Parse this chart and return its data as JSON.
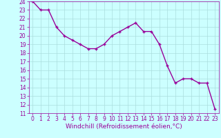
{
  "x": [
    0,
    1,
    2,
    3,
    4,
    5,
    6,
    7,
    8,
    9,
    10,
    11,
    12,
    13,
    14,
    15,
    16,
    17,
    18,
    19,
    20,
    21,
    22,
    23
  ],
  "y": [
    24,
    23,
    23,
    21,
    20,
    19.5,
    19,
    18.5,
    18.5,
    19,
    20,
    20.5,
    21,
    21.5,
    20.5,
    20.5,
    19,
    16.5,
    14.5,
    15,
    15,
    14.5,
    14.5,
    11.5
  ],
  "line_color": "#990099",
  "marker": "+",
  "marker_color": "#990099",
  "bg_color": "#ccffff",
  "grid_color": "#aadddd",
  "xlabel": "Windchill (Refroidissement éolien,°C)",
  "xlabel_color": "#990099",
  "ylim": [
    11,
    24
  ],
  "xlim": [
    -0.5,
    23.5
  ],
  "yticks": [
    11,
    12,
    13,
    14,
    15,
    16,
    17,
    18,
    19,
    20,
    21,
    22,
    23,
    24
  ],
  "xticks": [
    0,
    1,
    2,
    3,
    4,
    5,
    6,
    7,
    8,
    9,
    10,
    11,
    12,
    13,
    14,
    15,
    16,
    17,
    18,
    19,
    20,
    21,
    22,
    23
  ],
  "tick_color": "#990099",
  "tick_labelsize": 5.5,
  "xlabel_fontsize": 6.5,
  "line_width": 1.0,
  "marker_size": 3
}
